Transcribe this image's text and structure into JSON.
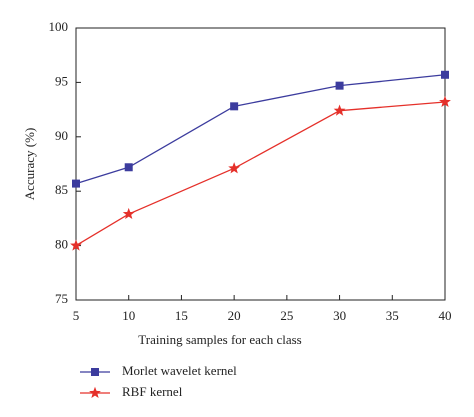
{
  "chart_data": {
    "type": "line",
    "x_label": "Training samples for each class",
    "y_label": "Accuracy (%)",
    "x": [
      5,
      10,
      20,
      30,
      40
    ],
    "series": [
      {
        "name": "Morlet wavelet kernel",
        "color": "#3c3c9e",
        "marker": "square",
        "values": [
          85.7,
          87.2,
          92.8,
          94.7,
          95.7
        ]
      },
      {
        "name": "RBF kernel",
        "color": "#e5302a",
        "marker": "star",
        "values": [
          80.0,
          82.9,
          87.1,
          92.4,
          93.2
        ]
      }
    ],
    "xlim": [
      5,
      40
    ],
    "xticks": [
      5,
      10,
      15,
      20,
      25,
      30,
      35,
      40
    ],
    "ylim": [
      75,
      100
    ],
    "yticks": [
      75,
      80,
      85,
      90,
      95,
      100
    ],
    "grid": false,
    "legend": "below"
  }
}
